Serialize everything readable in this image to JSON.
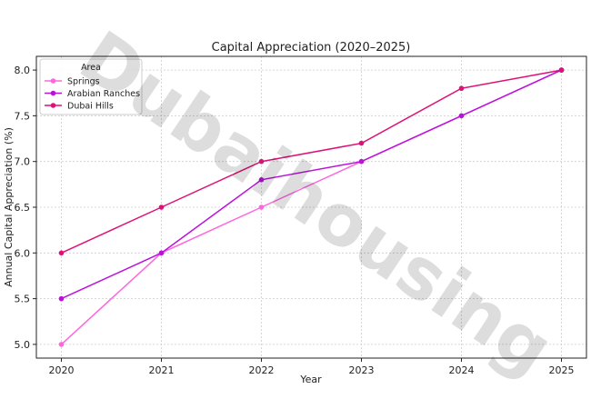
{
  "chart_data": {
    "type": "line",
    "title": "Capital Appreciation (2020–2025)",
    "xlabel": "Year",
    "ylabel": "Annual Capital Appreciation (%)",
    "x": [
      2020,
      2021,
      2022,
      2023,
      2024,
      2025
    ],
    "x_ticks": [
      "2020",
      "2021",
      "2022",
      "2023",
      "2024",
      "2025"
    ],
    "y_ticks": [
      "5.0",
      "5.5",
      "6.0",
      "6.5",
      "7.0",
      "7.5",
      "8.0"
    ],
    "ylim": [
      4.85,
      8.15
    ],
    "grid": true,
    "legend": {
      "title": "Area",
      "position": "top-left"
    },
    "series": [
      {
        "name": "Springs",
        "color": "#ff66dd",
        "values": [
          5.0,
          6.0,
          6.5,
          7.0,
          7.5,
          8.0
        ]
      },
      {
        "name": "Arabian Ranches",
        "color": "#bb11dd",
        "values": [
          5.5,
          6.0,
          6.8,
          7.0,
          7.5,
          8.0
        ]
      },
      {
        "name": "Dubai Hills",
        "color": "#dd1177",
        "values": [
          6.0,
          6.5,
          7.0,
          7.2,
          7.8,
          8.0
        ]
      }
    ],
    "watermark": "Dubaihousing"
  }
}
